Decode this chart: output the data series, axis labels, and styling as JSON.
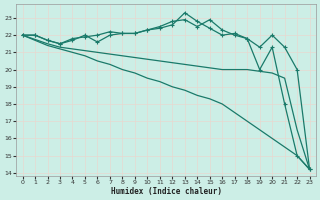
{
  "bg_color": "#cceee6",
  "grid_color": "#b8ddd6",
  "line_color": "#1a7a6a",
  "xlabel": "Humidex (Indice chaleur)",
  "xlim": [
    -0.5,
    23.5
  ],
  "ylim": [
    13.8,
    23.8
  ],
  "yticks": [
    14,
    15,
    16,
    17,
    18,
    19,
    20,
    21,
    22,
    23
  ],
  "xticks": [
    0,
    1,
    2,
    3,
    4,
    5,
    6,
    7,
    8,
    9,
    10,
    11,
    12,
    13,
    14,
    15,
    16,
    17,
    18,
    19,
    20,
    21,
    22,
    23
  ],
  "line1_x": [
    0,
    1,
    2,
    3,
    4,
    5,
    6,
    7,
    8,
    9,
    10,
    11,
    12,
    13,
    14,
    15,
    16,
    17,
    18,
    19,
    20,
    21,
    22,
    23
  ],
  "line1_y": [
    22.0,
    22.0,
    21.7,
    21.5,
    21.8,
    21.9,
    22.0,
    22.2,
    22.1,
    22.1,
    22.3,
    22.4,
    22.6,
    23.3,
    22.8,
    22.4,
    22.0,
    22.1,
    21.8,
    21.3,
    22.0,
    21.3,
    20.0,
    14.2
  ],
  "line2_x": [
    0,
    1,
    2,
    3,
    4,
    5,
    6,
    7,
    8,
    9,
    10,
    11,
    12,
    13,
    14,
    15,
    16,
    17,
    18,
    19,
    20,
    21,
    22,
    23
  ],
  "line2_y": [
    22.0,
    22.0,
    21.7,
    21.5,
    21.7,
    22.0,
    21.6,
    22.0,
    22.1,
    22.1,
    22.3,
    22.5,
    22.8,
    22.9,
    22.5,
    22.9,
    22.3,
    22.0,
    21.8,
    20.0,
    21.3,
    18.0,
    15.0,
    14.2
  ],
  "line3_x": [
    0,
    2,
    3,
    4,
    5,
    6,
    7,
    8,
    9,
    10,
    11,
    12,
    13,
    14,
    15,
    16,
    17,
    18,
    19,
    20,
    21,
    22,
    23
  ],
  "line3_y": [
    22.0,
    21.5,
    21.3,
    21.2,
    21.1,
    21.0,
    20.9,
    20.8,
    20.7,
    20.6,
    20.5,
    20.4,
    20.3,
    20.2,
    20.1,
    20.0,
    20.0,
    20.0,
    19.9,
    19.8,
    19.5,
    16.5,
    14.2
  ],
  "line4_x": [
    0,
    2,
    3,
    4,
    5,
    6,
    7,
    8,
    9,
    10,
    11,
    12,
    13,
    14,
    15,
    16,
    17,
    18,
    19,
    20,
    21,
    22,
    23
  ],
  "line4_y": [
    22.0,
    21.4,
    21.2,
    21.0,
    20.8,
    20.5,
    20.3,
    20.0,
    19.8,
    19.5,
    19.3,
    19.0,
    18.8,
    18.5,
    18.3,
    18.0,
    17.5,
    17.0,
    16.5,
    16.0,
    15.5,
    15.0,
    14.2
  ]
}
